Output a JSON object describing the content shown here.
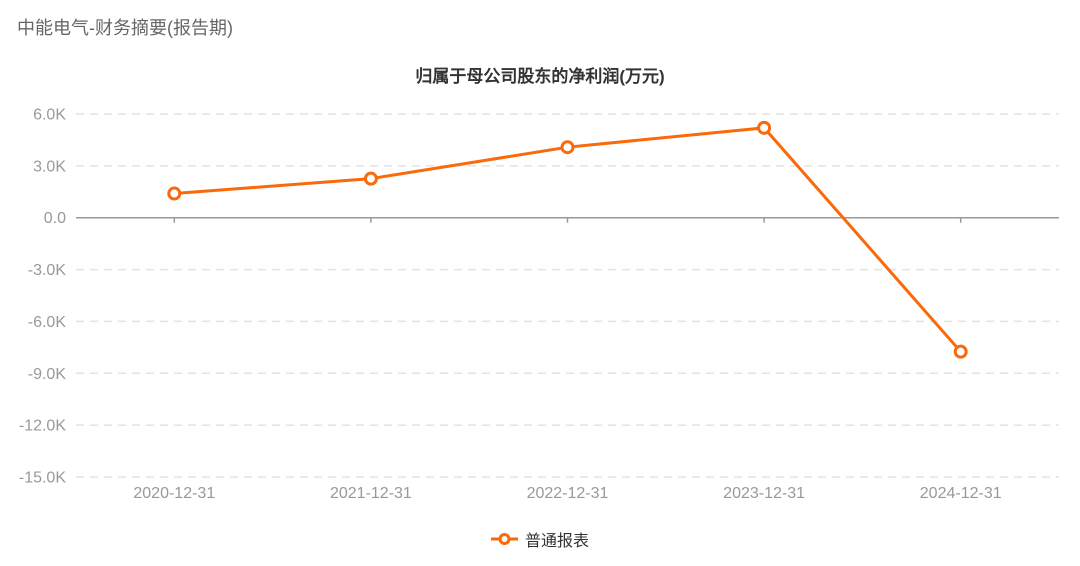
{
  "header": {
    "title": "中能电气-财务摘要(报告期)"
  },
  "colors": {
    "series_orange": "#FA690A",
    "grid_line": "#E3E3E3",
    "axis_line": "#999999",
    "axis_label": "#999999",
    "header_text": "#666666",
    "chart_title_text": "#333333",
    "legend_text": "#333333",
    "background": "#FFFFFF",
    "marker_fill": "#FFFFFF"
  },
  "chart_data": {
    "type": "line",
    "title": "归属于母公司股东的净利润(万元)",
    "categories": [
      "2020-12-31",
      "2021-12-31",
      "2022-12-31",
      "2023-12-31",
      "2024-12-31"
    ],
    "series": [
      {
        "name": "普通报表",
        "color": "#FA690A",
        "values": [
          1400,
          2260,
          4080,
          5200,
          -7750
        ]
      }
    ],
    "xlabel": "",
    "ylabel": "",
    "ylim": [
      -15000,
      6000
    ],
    "yticks": {
      "values": [
        6000,
        3000,
        0,
        -3000,
        -6000,
        -9000,
        -12000,
        -15000
      ],
      "labels": [
        "6.0K",
        "3.0K",
        "0.0",
        "-3.0K",
        "-6.0K",
        "-9.0K",
        "-12.0K",
        "-15.0K"
      ]
    },
    "grid": "horizontal-dashed",
    "x_axis_position": "zero-line",
    "legend_position": "bottom-center"
  }
}
